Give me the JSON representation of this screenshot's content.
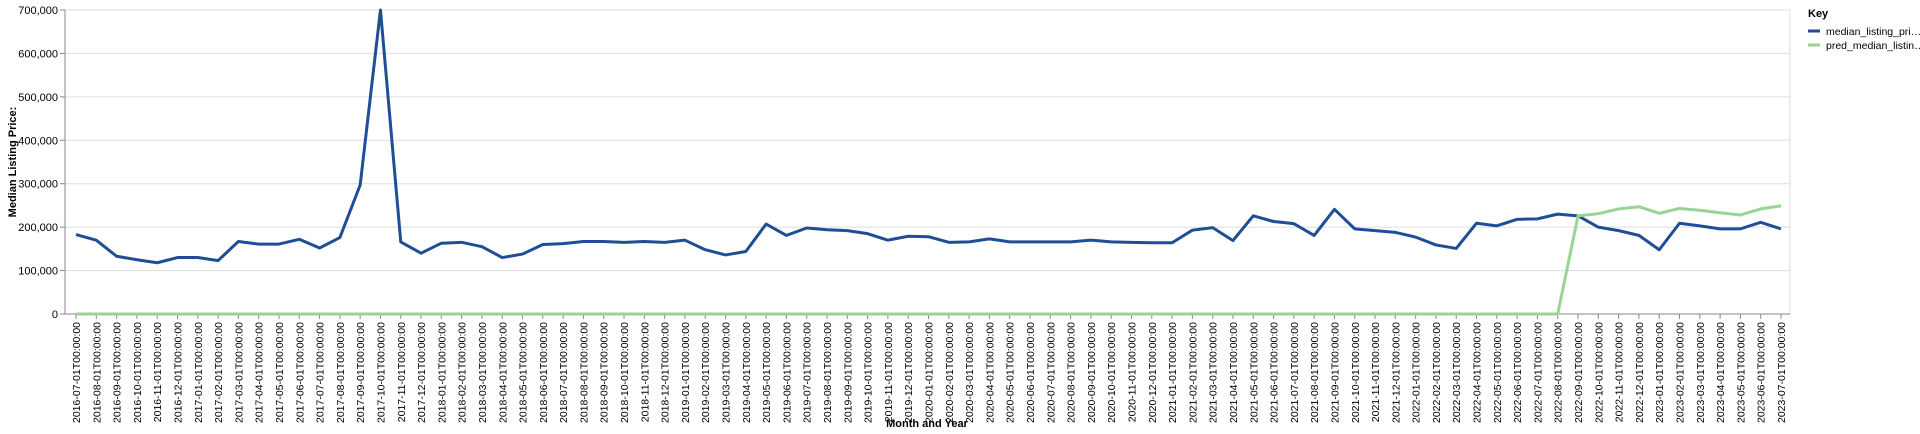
{
  "chart_data": {
    "type": "line",
    "x_label": "Month and Year",
    "y_label": "Median Listing Price:",
    "legend_title": "Key",
    "legend_position": "right",
    "grid": true,
    "categories": [
      "2016-07-01T00:00:00",
      "2016-08-01T00:00:00",
      "2016-09-01T00:00:00",
      "2016-10-01T00:00:00",
      "2016-11-01T00:00:00",
      "2016-12-01T00:00:00",
      "2017-01-01T00:00:00",
      "2017-02-01T00:00:00",
      "2017-03-01T00:00:00",
      "2017-04-01T00:00:00",
      "2017-05-01T00:00:00",
      "2017-06-01T00:00:00",
      "2017-07-01T00:00:00",
      "2017-08-01T00:00:00",
      "2017-09-01T00:00:00",
      "2017-10-01T00:00:00",
      "2017-11-01T00:00:00",
      "2017-12-01T00:00:00",
      "2018-01-01T00:00:00",
      "2018-02-01T00:00:00",
      "2018-03-01T00:00:00",
      "2018-04-01T00:00:00",
      "2018-05-01T00:00:00",
      "2018-06-01T00:00:00",
      "2018-07-01T00:00:00",
      "2018-08-01T00:00:00",
      "2018-09-01T00:00:00",
      "2018-10-01T00:00:00",
      "2018-11-01T00:00:00",
      "2018-12-01T00:00:00",
      "2019-01-01T00:00:00",
      "2019-02-01T00:00:00",
      "2019-03-01T00:00:00",
      "2019-04-01T00:00:00",
      "2019-05-01T00:00:00",
      "2019-06-01T00:00:00",
      "2019-07-01T00:00:00",
      "2019-08-01T00:00:00",
      "2019-09-01T00:00:00",
      "2019-10-01T00:00:00",
      "2019-11-01T00:00:00",
      "2019-12-01T00:00:00",
      "2020-01-01T00:00:00",
      "2020-02-01T00:00:00",
      "2020-03-01T00:00:00",
      "2020-04-01T00:00:00",
      "2020-05-01T00:00:00",
      "2020-06-01T00:00:00",
      "2020-07-01T00:00:00",
      "2020-08-01T00:00:00",
      "2020-09-01T00:00:00",
      "2020-10-01T00:00:00",
      "2020-11-01T00:00:00",
      "2020-12-01T00:00:00",
      "2021-01-01T00:00:00",
      "2021-02-01T00:00:00",
      "2021-03-01T00:00:00",
      "2021-04-01T00:00:00",
      "2021-05-01T00:00:00",
      "2021-06-01T00:00:00",
      "2021-07-01T00:00:00",
      "2021-08-01T00:00:00",
      "2021-09-01T00:00:00",
      "2021-10-01T00:00:00",
      "2021-11-01T00:00:00",
      "2021-12-01T00:00:00",
      "2022-01-01T00:00:00",
      "2022-02-01T00:00:00",
      "2022-03-01T00:00:00",
      "2022-04-01T00:00:00",
      "2022-05-01T00:00:00",
      "2022-06-01T00:00:00",
      "2022-07-01T00:00:00",
      "2022-08-01T00:00:00",
      "2022-09-01T00:00:00",
      "2022-10-01T00:00:00",
      "2022-11-01T00:00:00",
      "2022-12-01T00:00:00",
      "2023-01-01T00:00:00",
      "2023-02-01T00:00:00",
      "2023-03-01T00:00:00",
      "2023-04-01T00:00:00",
      "2023-05-01T00:00:00",
      "2023-06-01T00:00:00",
      "2023-07-01T00:00:00"
    ],
    "series": [
      {
        "name": "median_listing_pri…",
        "color": "#1f4e96",
        "values": [
          183000,
          170000,
          133000,
          125000,
          118000,
          130000,
          130000,
          123000,
          167000,
          161000,
          161000,
          172000,
          152000,
          176000,
          297000,
          700000,
          166000,
          140000,
          163000,
          165000,
          155000,
          130000,
          138000,
          160000,
          162000,
          167000,
          167000,
          165000,
          167000,
          165000,
          170000,
          148000,
          136000,
          144000,
          207000,
          181000,
          198000,
          194000,
          192000,
          185000,
          170000,
          179000,
          178000,
          165000,
          166000,
          173000,
          166000,
          166000,
          166000,
          166000,
          170000,
          166000,
          165000,
          164000,
          164000,
          193000,
          199000,
          169000,
          226000,
          213000,
          208000,
          181000,
          241000,
          196000,
          192000,
          188000,
          177000,
          159000,
          151000,
          209000,
          203000,
          218000,
          219000,
          230000,
          226000,
          200000,
          192000,
          181000,
          148000,
          209000,
          203000,
          196000,
          196000,
          211000,
          196000
        ]
      },
      {
        "name": "pred_median_listin…",
        "color": "#98d594",
        "values": [
          0,
          0,
          0,
          0,
          0,
          0,
          0,
          0,
          0,
          0,
          0,
          0,
          0,
          0,
          0,
          0,
          0,
          0,
          0,
          0,
          0,
          0,
          0,
          0,
          0,
          0,
          0,
          0,
          0,
          0,
          0,
          0,
          0,
          0,
          0,
          0,
          0,
          0,
          0,
          0,
          0,
          0,
          0,
          0,
          0,
          0,
          0,
          0,
          0,
          0,
          0,
          0,
          0,
          0,
          0,
          0,
          0,
          0,
          0,
          0,
          0,
          0,
          0,
          0,
          0,
          0,
          0,
          0,
          0,
          0,
          0,
          0,
          0,
          0,
          226000,
          231000,
          242000,
          247000,
          232000,
          243000,
          239000,
          233000,
          228000,
          242000,
          249000
        ]
      }
    ],
    "ylim": [
      0,
      700000
    ],
    "yticks": [
      {
        "value": 0,
        "label": "0"
      },
      {
        "value": 100000,
        "label": "100,000"
      },
      {
        "value": 200000,
        "label": "200,000"
      },
      {
        "value": 300000,
        "label": "300,000"
      },
      {
        "value": 400000,
        "label": "400,000"
      },
      {
        "value": 500000,
        "label": "500,000"
      },
      {
        "value": 600000,
        "label": "600,000"
      },
      {
        "value": 700000,
        "label": "700,000"
      }
    ]
  }
}
